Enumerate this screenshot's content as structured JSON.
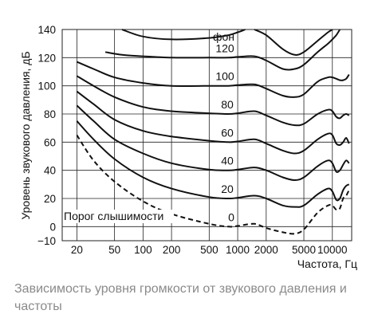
{
  "chart_data": {
    "type": "line",
    "xscale": "log",
    "xlim": [
      14,
      16000
    ],
    "ylim": [
      -10,
      140
    ],
    "xticks": [
      20,
      50,
      100,
      200,
      500,
      1000,
      2000,
      5000,
      10000
    ],
    "xtick_labels": [
      "20",
      "50",
      "100",
      "200",
      "500",
      "1000",
      "2000",
      "5000",
      "10000"
    ],
    "yticks": [
      -10,
      0,
      20,
      40,
      60,
      80,
      100,
      120,
      140
    ],
    "ytick_labels": [
      "−10",
      "0",
      "20",
      "40",
      "60",
      "80",
      "100",
      "120",
      "140"
    ],
    "xlabel": "Частота, Гц",
    "ylabel": "Уровень звукового давления, дБ",
    "grid": true,
    "unit_label": "фон",
    "series": [
      {
        "name": "0",
        "style": "dashed",
        "points": [
          [
            20,
            65
          ],
          [
            30,
            47
          ],
          [
            50,
            32
          ],
          [
            100,
            18
          ],
          [
            200,
            9
          ],
          [
            500,
            2
          ],
          [
            800,
            0
          ],
          [
            1000,
            0.5
          ],
          [
            1500,
            2
          ],
          [
            2000,
            -1
          ],
          [
            3000,
            -4
          ],
          [
            4000,
            -5
          ],
          [
            5000,
            -2
          ],
          [
            7000,
            10
          ],
          [
            9000,
            15
          ],
          [
            10000,
            15
          ],
          [
            11000,
            12
          ],
          [
            12000,
            13
          ],
          [
            13000,
            20
          ],
          [
            14000,
            22
          ],
          [
            15000,
            26
          ]
        ]
      },
      {
        "name": "20",
        "points": [
          [
            20,
            75
          ],
          [
            30,
            62
          ],
          [
            50,
            48
          ],
          [
            100,
            35
          ],
          [
            200,
            27
          ],
          [
            500,
            21
          ],
          [
            800,
            20
          ],
          [
            1000,
            20.5
          ],
          [
            1500,
            22
          ],
          [
            2000,
            20
          ],
          [
            3000,
            15
          ],
          [
            4000,
            14
          ],
          [
            5000,
            15
          ],
          [
            7000,
            23
          ],
          [
            9000,
            27
          ],
          [
            10000,
            25
          ],
          [
            11000,
            19
          ],
          [
            12000,
            20
          ],
          [
            13000,
            26
          ],
          [
            14000,
            29
          ],
          [
            15000,
            30
          ]
        ]
      },
      {
        "name": "40",
        "points": [
          [
            20,
            86
          ],
          [
            30,
            75
          ],
          [
            50,
            62
          ],
          [
            100,
            52
          ],
          [
            200,
            45
          ],
          [
            500,
            40.5
          ],
          [
            800,
            40
          ],
          [
            1000,
            40.5
          ],
          [
            1500,
            42
          ],
          [
            2000,
            40
          ],
          [
            3000,
            35
          ],
          [
            4000,
            33
          ],
          [
            5000,
            35
          ],
          [
            7000,
            43
          ],
          [
            9000,
            47
          ],
          [
            10000,
            45
          ],
          [
            11000,
            39
          ],
          [
            12000,
            40
          ],
          [
            13000,
            44
          ],
          [
            14000,
            47
          ],
          [
            15000,
            45
          ]
        ]
      },
      {
        "name": "60",
        "points": [
          [
            20,
            96
          ],
          [
            30,
            87
          ],
          [
            50,
            76
          ],
          [
            100,
            68
          ],
          [
            200,
            64
          ],
          [
            500,
            61
          ],
          [
            800,
            60
          ],
          [
            1000,
            60.5
          ],
          [
            1500,
            62
          ],
          [
            2000,
            59
          ],
          [
            3000,
            54
          ],
          [
            4000,
            52
          ],
          [
            5000,
            54
          ],
          [
            7000,
            62
          ],
          [
            9000,
            66
          ],
          [
            10000,
            65
          ],
          [
            11000,
            59
          ],
          [
            12000,
            58
          ],
          [
            13000,
            60
          ],
          [
            14000,
            63
          ],
          [
            15000,
            59
          ]
        ]
      },
      {
        "name": "80",
        "points": [
          [
            20,
            107
          ],
          [
            30,
            100
          ],
          [
            50,
            92
          ],
          [
            100,
            85
          ],
          [
            200,
            82
          ],
          [
            500,
            80.5
          ],
          [
            800,
            80
          ],
          [
            1000,
            80.5
          ],
          [
            1500,
            82
          ],
          [
            2000,
            79
          ],
          [
            3000,
            74
          ],
          [
            4000,
            72
          ],
          [
            5000,
            73
          ],
          [
            7000,
            80
          ],
          [
            9000,
            83
          ],
          [
            10000,
            82
          ],
          [
            11000,
            78
          ],
          [
            12000,
            77
          ],
          [
            13000,
            79
          ],
          [
            14000,
            80
          ],
          [
            15000,
            79
          ]
        ]
      },
      {
        "name": "100",
        "points": [
          [
            20,
            117
          ],
          [
            30,
            112
          ],
          [
            50,
            106
          ],
          [
            100,
            102
          ],
          [
            200,
            100
          ],
          [
            500,
            100
          ],
          [
            800,
            100
          ],
          [
            1000,
            100.5
          ],
          [
            1500,
            101
          ],
          [
            2000,
            98
          ],
          [
            3000,
            93
          ],
          [
            4000,
            92
          ],
          [
            5000,
            94
          ],
          [
            7000,
            103
          ],
          [
            9000,
            106
          ],
          [
            10000,
            106
          ],
          [
            11000,
            105
          ],
          [
            12000,
            104
          ],
          [
            13000,
            104
          ],
          [
            14000,
            105
          ],
          [
            15000,
            108
          ]
        ]
      },
      {
        "name": "120",
        "points": [
          [
            40,
            124
          ],
          [
            60,
            122
          ],
          [
            100,
            121
          ],
          [
            200,
            120
          ],
          [
            500,
            120
          ],
          [
            800,
            120
          ],
          [
            1000,
            120.5
          ],
          [
            1500,
            121
          ],
          [
            2000,
            118
          ],
          [
            3000,
            112
          ],
          [
            4000,
            112
          ],
          [
            5000,
            115
          ],
          [
            7000,
            124
          ],
          [
            9000,
            130
          ],
          [
            10000,
            133
          ],
          [
            11000,
            136
          ],
          [
            12000,
            140
          ]
        ]
      },
      {
        "name": "",
        "points": [
          [
            60,
            140
          ],
          [
            100,
            135
          ],
          [
            200,
            133
          ],
          [
            500,
            134
          ],
          [
            800,
            136
          ],
          [
            1000,
            138
          ],
          [
            1200,
            140
          ]
        ]
      },
      {
        "name": "",
        "points": [
          [
            1500,
            140
          ],
          [
            2000,
            136
          ],
          [
            3000,
            126
          ],
          [
            4000,
            122
          ],
          [
            5000,
            124
          ],
          [
            7000,
            132
          ],
          [
            9000,
            138
          ],
          [
            10000,
            140
          ]
        ]
      }
    ],
    "annotations": [
      {
        "text": "Порог слышимости",
        "x": 35,
        "y": 8
      }
    ]
  },
  "caption": "Зависимость уровня громкости от звукового давления и частоты"
}
